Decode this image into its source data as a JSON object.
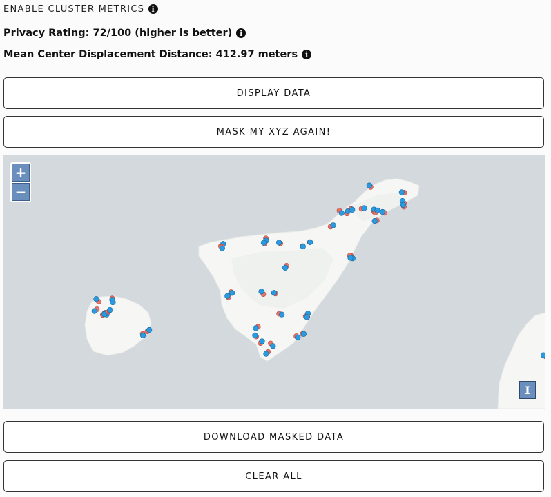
{
  "cluster_toggle": {
    "label": "ENABLE CLUSTER METRICS",
    "icon": "info-icon"
  },
  "metrics": {
    "privacy": "Privacy Rating: 72/100 (higher is better)",
    "displacement": "Mean Center Displacement Distance: 412.97 meters"
  },
  "buttons": {
    "display": "DISPLAY DATA",
    "mask": "MASK MY XYZ AGAIN!",
    "download": "DOWNLOAD MASKED DATA",
    "clear": "CLEAR ALL"
  },
  "map": {
    "zoom_in": "+",
    "zoom_out": "−",
    "attribution": "I",
    "colors": {
      "water": "#d3d9dd",
      "land": "#f6f6f5",
      "original": "#e8736b",
      "masked": "#2b9be0"
    }
  }
}
